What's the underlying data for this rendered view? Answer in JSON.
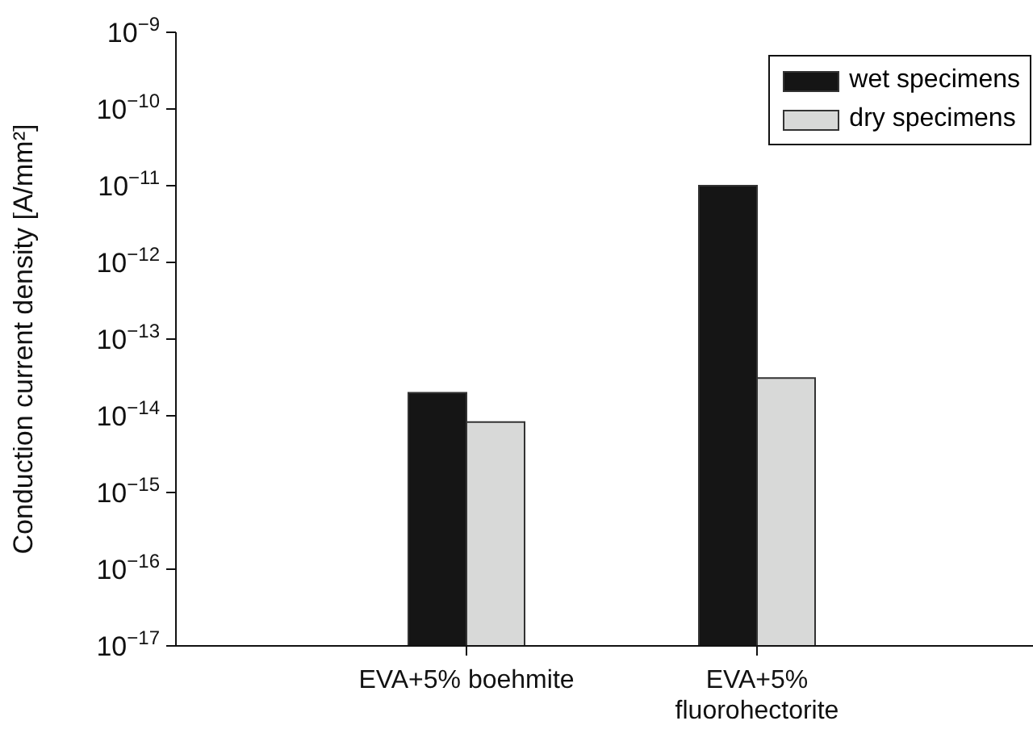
{
  "chart_data": {
    "type": "bar",
    "ylabel": "Conduction current density [A/mm²]",
    "categories": [
      "EVA+5% boehmite",
      "EVA+5% fluorohectorite"
    ],
    "series": [
      {
        "name": "wet specimens",
        "color": "#151515",
        "values": [
          2e-14,
          1e-11
        ]
      },
      {
        "name": "dry specimens",
        "color": "#d8d9d8",
        "values": [
          8.3e-15,
          3.1e-14
        ]
      }
    ],
    "log": true,
    "ylim": [
      1e-17,
      1e-09
    ],
    "yticks": [
      {
        "value": 1e-17,
        "label": "10$^{−17}$"
      },
      {
        "value": 1e-16,
        "label": "10$^{−16}$"
      },
      {
        "value": 1e-15,
        "label": "10$^{−15}$"
      },
      {
        "value": 1e-14,
        "label": "10$^{−14}$"
      },
      {
        "value": 1e-13,
        "label": "10$^{−13}$"
      },
      {
        "value": 1e-12,
        "label": "10$^{−12}$"
      },
      {
        "value": 1e-11,
        "label": "10$^{−11}$"
      },
      {
        "value": 1e-10,
        "label": "10$^{−10}$"
      },
      {
        "value": 1e-09,
        "label": "10$^{−9}$"
      }
    ],
    "grid": false,
    "legend": "top right"
  }
}
